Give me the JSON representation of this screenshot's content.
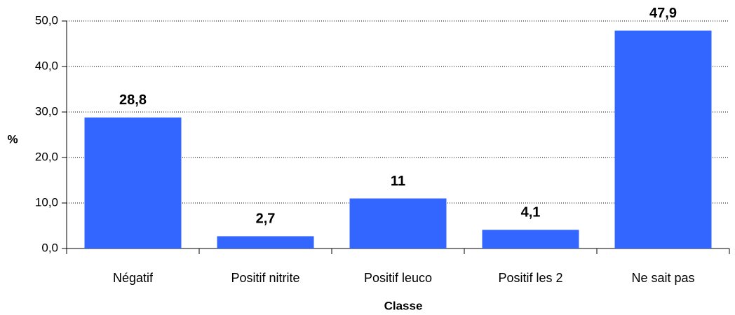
{
  "chart_data": {
    "type": "bar",
    "categories": [
      "Négatif",
      "Positif nitrite",
      "Positif leuco",
      "Positif les 2",
      "Ne sait pas"
    ],
    "values": [
      28.8,
      2.7,
      11,
      4.1,
      47.9
    ],
    "value_labels": [
      "28,8",
      "2,7",
      "11",
      "4,1",
      "47,9"
    ],
    "color": "#3366ff",
    "x_label": "Classe",
    "y_label": "%",
    "ylim": [
      0,
      50
    ],
    "yticks": [
      {
        "value": 0,
        "label": "0,0"
      },
      {
        "value": 10,
        "label": "10,0"
      },
      {
        "value": 20,
        "label": "20,0"
      },
      {
        "value": 30,
        "label": "30,0"
      },
      {
        "value": 40,
        "label": "40,0"
      },
      {
        "value": 50,
        "label": "50,0"
      }
    ],
    "grid": true
  }
}
